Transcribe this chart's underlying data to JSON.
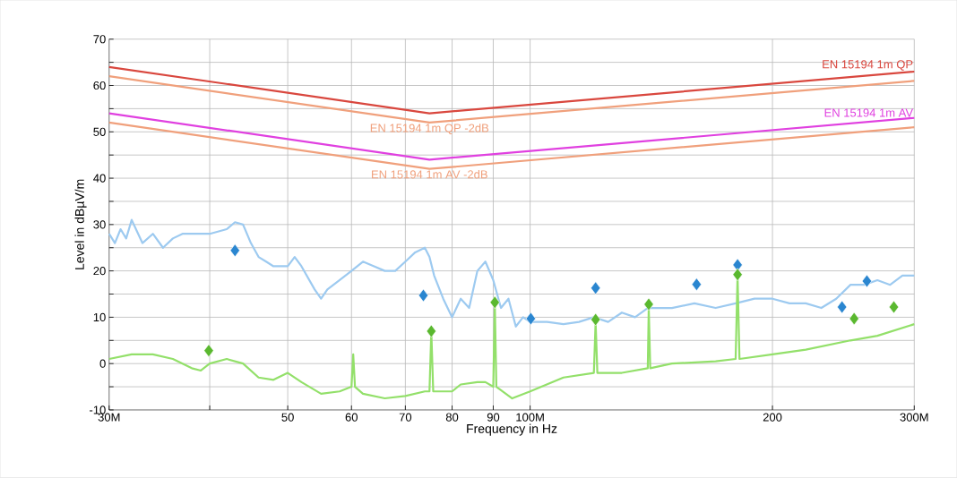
{
  "chart_data": {
    "type": "line",
    "xlabel": "Frequency in Hz",
    "ylabel": "Level in dBµV/m",
    "log": "x",
    "grid": true,
    "legend": false,
    "xlim": [
      30,
      300
    ],
    "ylim": [
      -10,
      70
    ],
    "xticks": [
      {
        "value": 30,
        "label": "30M"
      },
      {
        "value": 40,
        "label": null
      },
      50,
      60,
      70,
      80,
      90,
      {
        "value": 100,
        "label": "100M"
      },
      200,
      {
        "value": 300,
        "label": "300M"
      }
    ],
    "yticks": [
      -10,
      {
        "value": -5,
        "label": null
      },
      0,
      {
        "value": 5,
        "label": null
      },
      10,
      {
        "value": 15,
        "label": null
      },
      20,
      {
        "value": 25,
        "label": null
      },
      30,
      {
        "value": 35,
        "label": null
      },
      40,
      {
        "value": 45,
        "label": null
      },
      50,
      {
        "value": 55,
        "label": null
      },
      60,
      {
        "value": 65,
        "label": null
      },
      70
    ],
    "series": [
      {
        "marker": "none",
        "color": "#9dcaf0",
        "x": [
          30,
          30.5,
          31,
          31.5,
          32,
          33,
          34,
          35,
          36,
          37,
          38,
          40,
          42,
          43,
          44,
          45,
          46,
          47,
          48,
          50,
          51,
          52,
          54,
          55,
          56,
          58,
          60,
          62,
          64,
          66,
          68,
          70,
          72,
          74,
          75,
          76,
          78,
          80,
          82,
          84,
          86,
          88,
          90,
          92,
          94,
          96,
          98,
          100,
          105,
          110,
          115,
          120,
          125,
          130,
          135,
          140,
          150,
          160,
          170,
          180,
          190,
          200,
          210,
          220,
          230,
          240,
          250,
          260,
          270,
          280,
          290,
          300
        ],
        "values": [
          28,
          26,
          29,
          27,
          31,
          26,
          28,
          25,
          27,
          28,
          28,
          28,
          29,
          30.5,
          30,
          26,
          23,
          22,
          21,
          21,
          23,
          21,
          16,
          14,
          16,
          18,
          20,
          22,
          21,
          20,
          20,
          22,
          24,
          25,
          23,
          19,
          14,
          10,
          14,
          12,
          20,
          22,
          18,
          12,
          14,
          8,
          10,
          9,
          9,
          8.5,
          9,
          10,
          9,
          11,
          10,
          12,
          12,
          13,
          12,
          13,
          14,
          14,
          13,
          13,
          12,
          14,
          17,
          17,
          18,
          17,
          19,
          19
        ]
      },
      {
        "marker": "none",
        "color": "#93e06a",
        "x": [
          30,
          32,
          34,
          36,
          38,
          39,
          40,
          42,
          44,
          46,
          48,
          50,
          52,
          55,
          58,
          60,
          60.3,
          60.6,
          62,
          66,
          70,
          74,
          75,
          75.4,
          75.8,
          80,
          82,
          86,
          88,
          90,
          90.4,
          90.8,
          95,
          100,
          110,
          120,
          120.6,
          121.2,
          130,
          140,
          140.4,
          141,
          150,
          170,
          180,
          181,
          182,
          200,
          220,
          250,
          270,
          300
        ],
        "values": [
          1,
          2,
          2,
          1,
          -1,
          -1.5,
          0,
          1,
          0,
          -3,
          -3.5,
          -2,
          -4,
          -6.5,
          -6,
          -5,
          2,
          -5,
          -6.5,
          -7.5,
          -7,
          -6,
          -6,
          7,
          -6,
          -6,
          -4.5,
          -4,
          -4,
          -5,
          13,
          -5,
          -7.5,
          -6,
          -3,
          -2,
          9,
          -2,
          -2,
          -1,
          12,
          -1,
          0,
          0.5,
          1,
          19,
          1,
          2,
          3,
          5,
          6,
          8.5
        ]
      },
      {
        "type": "scatter",
        "marker": "diamond",
        "color": "#2a86d0",
        "x": [
          43.0,
          73.7,
          100.2,
          120.6,
          161,
          181,
          244,
          262
        ],
        "values": [
          24.4,
          14.7,
          9.7,
          16.3,
          17.1,
          21.3,
          12.2,
          17.8
        ]
      },
      {
        "type": "scatter",
        "marker": "diamond",
        "color": "#5ab82f",
        "x": [
          39.9,
          75.4,
          90.4,
          120.6,
          140.4,
          181,
          252.6,
          283
        ],
        "values": [
          2.8,
          7.0,
          13.2,
          9.5,
          12.8,
          19.2,
          9.7,
          12.2
        ]
      },
      {
        "marker": "none",
        "name": "EN 15194 1m QP",
        "color": "#d9473e",
        "x": [
          30,
          75,
          300
        ],
        "values": [
          64,
          54,
          63
        ]
      },
      {
        "marker": "none",
        "name": "EN 15194 1m QP -2dB",
        "color": "#f0a07c",
        "x": [
          30,
          75,
          300
        ],
        "values": [
          62,
          52,
          61
        ]
      },
      {
        "marker": "none",
        "name": "EN 15194 1m AV",
        "color": "#e040e0",
        "x": [
          30,
          75,
          300
        ],
        "values": [
          54,
          44,
          53
        ]
      },
      {
        "marker": "none",
        "name": "EN 15194 1m AV -2dB",
        "color": "#f0a07c",
        "x": [
          30,
          75,
          300
        ],
        "values": [
          52,
          42,
          51
        ]
      }
    ]
  }
}
